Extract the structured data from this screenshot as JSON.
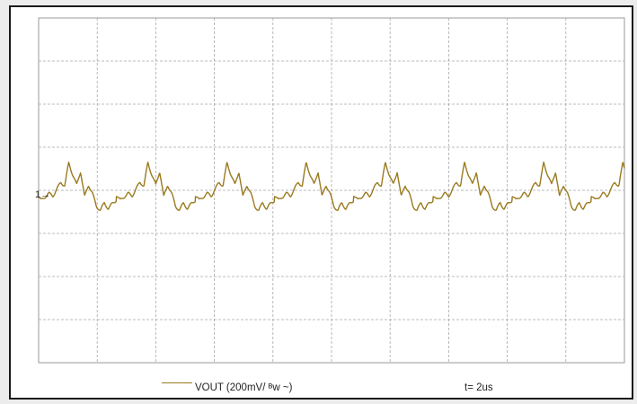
{
  "chart_data": {
    "type": "line",
    "series": [
      {
        "name": "VOUT (200mV/ ᴮw ~)",
        "color": "#9a7a1e",
        "values": [
          0.35,
          0.05,
          0.25,
          0.45,
          0.3,
          0.7,
          1.1,
          0.9,
          2.25,
          1.55,
          0.95,
          1.75,
          0.25,
          0.95,
          0.45,
          -0.3,
          -0.55,
          -0.1,
          -0.45,
          -0.15,
          0.05
        ]
      }
    ],
    "x_unit": "period",
    "periods": 7.4,
    "grid": true,
    "grid_divisions": {
      "x": 10,
      "y": 8
    },
    "reference_marker": "1→",
    "legend_label": "VOUT (200mV/ ᴮw ~)",
    "time_label": "t= 2us"
  }
}
